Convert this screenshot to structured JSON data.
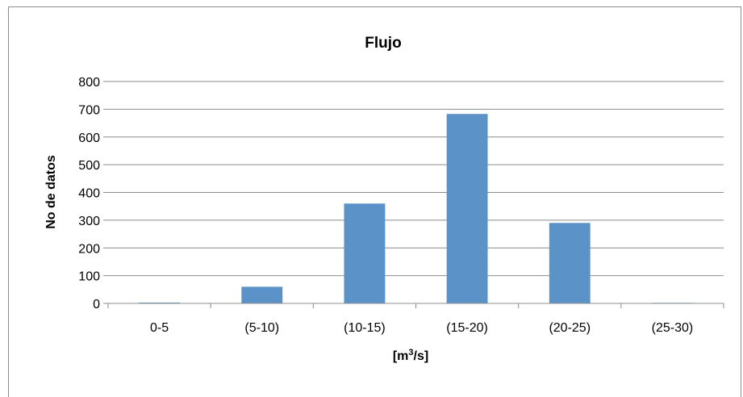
{
  "chart_data": {
    "type": "bar",
    "title": "Flujo",
    "xlabel_main": "[m",
    "xlabel_sup": "3",
    "xlabel_tail": "/s]",
    "ylabel": "No de datos",
    "categories": [
      "0-5",
      "(5-10)",
      "(10-15)",
      "(15-20)",
      "(20-25)",
      "(25-30)"
    ],
    "values": [
      3,
      60,
      360,
      683,
      290,
      2
    ],
    "ylim": [
      0,
      800
    ],
    "yticks": [
      0,
      100,
      200,
      300,
      400,
      500,
      600,
      700,
      800
    ],
    "grid": true,
    "bar_color": "#5b93c8",
    "grid_color": "#8c8c8c"
  }
}
